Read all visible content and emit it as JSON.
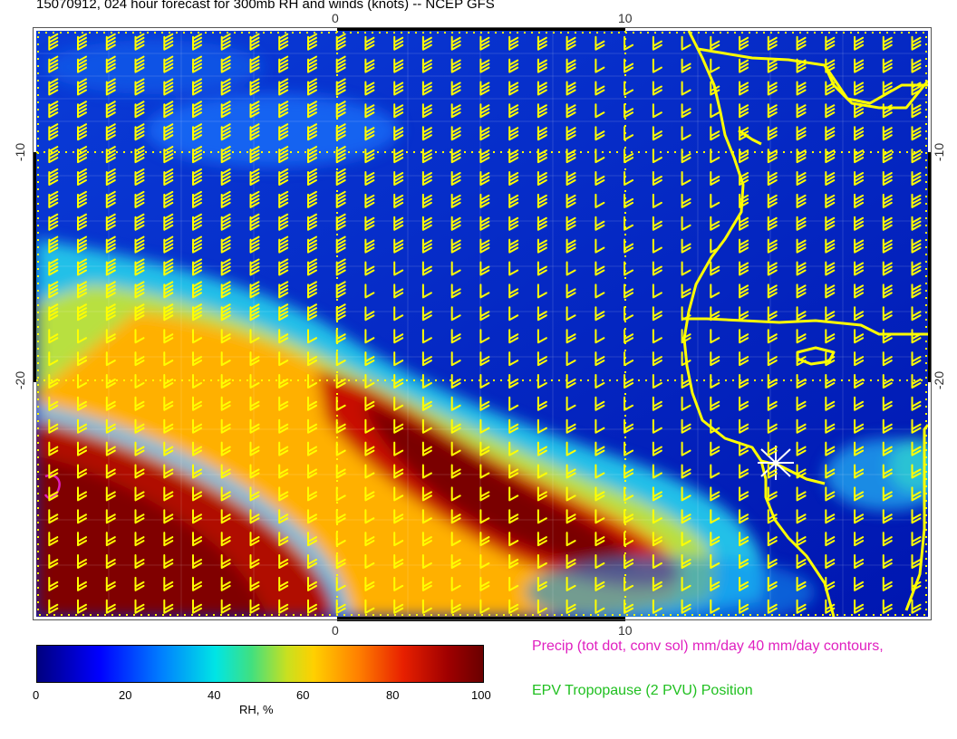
{
  "title": "15070912, 024 hour forecast for 300mb RH and winds (knots) -- NCEP GFS",
  "axes": {
    "top_ticks": [
      "0",
      "10"
    ],
    "bottom_ticks": [
      "0",
      "10"
    ],
    "left_ticks": [
      "-10",
      "-20"
    ],
    "right_ticks": [
      "-10",
      "-20"
    ]
  },
  "colorbar": {
    "label": "RH, %",
    "ticks": [
      "0",
      "20",
      "40",
      "60",
      "80",
      "100"
    ],
    "colors": [
      "#00007f",
      "#0000ff",
      "#0080ff",
      "#00e5e5",
      "#c8e020",
      "#ffd000",
      "#ff8000",
      "#e82000",
      "#a00000",
      "#6a0000"
    ]
  },
  "legend": {
    "precip": "Precip (tot dot, conv sol) mm/day 40 mm/day contours,",
    "epv": "EPV Tropopause (2 PVU) Position"
  },
  "colors": {
    "wind_barbs": "#ffff00",
    "coastline": "#ffff00",
    "precip_contour": "#e020c0",
    "epv": "#20c020"
  }
}
